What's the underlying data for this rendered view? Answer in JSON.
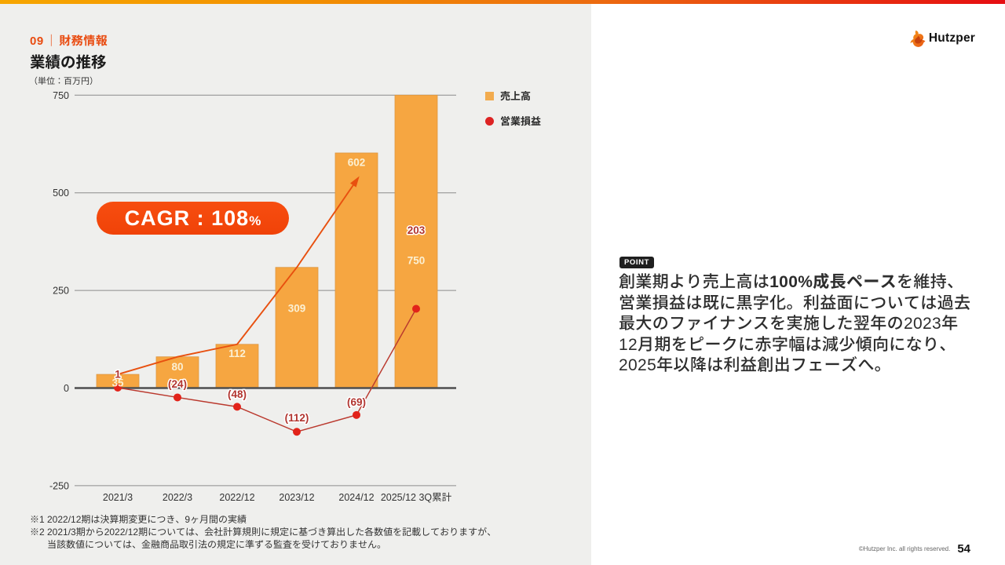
{
  "slide": {
    "section_no": "09",
    "separator": "｜",
    "section_title": "財務情報",
    "title": "業績の推移",
    "unit_note": "（単位：百万円）"
  },
  "chart_data": {
    "type": "bar+line",
    "title": "業績の推移",
    "unit": "百万円",
    "categories": [
      "2021/3",
      "2022/3",
      "2022/12",
      "2023/12",
      "2024/12",
      "2025/12 3Q累計"
    ],
    "series": [
      {
        "name": "売上高",
        "type": "bar",
        "color": "#F6A641",
        "values": [
          35,
          80,
          112,
          309,
          602,
          750
        ],
        "labels": [
          "35",
          "80",
          "112",
          "309",
          "602",
          "750"
        ]
      },
      {
        "name": "営業損益",
        "type": "line",
        "color": "#BA392E",
        "dot_color": "#E2231A",
        "values": [
          1,
          -24,
          -48,
          -112,
          -69,
          203
        ],
        "labels": [
          "1",
          "(24)",
          "(48)",
          "(112)",
          "(69)",
          "203"
        ]
      }
    ],
    "yticks": [
      750,
      500,
      250,
      0,
      -250
    ],
    "ylim": [
      -250,
      750
    ],
    "grid": true,
    "legend_position": "top-right",
    "annotation": {
      "label": "CAGR : 108",
      "suffix": "%"
    }
  },
  "legend": {
    "items": [
      {
        "label": "売上高",
        "swatch": "square",
        "color": "#F2AB4E"
      },
      {
        "label": "営業損益",
        "swatch": "circle",
        "color": "#DD2323"
      }
    ]
  },
  "point": {
    "badge": "POINT",
    "line1_pre": "創業期より売上高は",
    "line1_bold": "100%成長ペース",
    "line1_post": "を維持、",
    "line2": "営業損益は既に黒字化。利益面については過去",
    "line3": "最大のファイナンスを実施した翌年の2023年",
    "line4": "12月期をピークに赤字幅は減少傾向になり、",
    "line5": "2025年以降は利益創出フェーズへ。"
  },
  "footnotes": [
    {
      "marker": "※1",
      "line1": "2022/12期は決算期変更につき、9ヶ月間の実績",
      "line2": ""
    },
    {
      "marker": "※2",
      "line1": "2021/3期から2022/12期については、会社計算規則に規定に基づき算出した各数値を記載しておりますが、",
      "line2": "当該数値については、金融商品取引法の規定に準ずる監査を受けておりません。"
    }
  ],
  "brand": {
    "logo_text": "Hutzper"
  },
  "footer": {
    "copyright": "©Hutzper Inc. all rights reserved.",
    "page": "54"
  }
}
